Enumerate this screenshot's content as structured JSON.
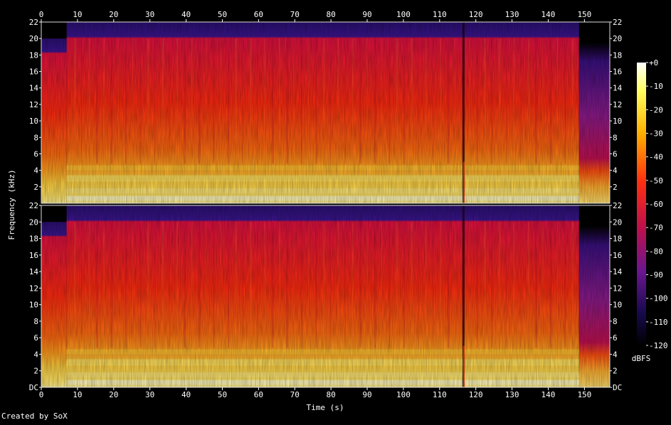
{
  "chart_data": {
    "type": "heatmap",
    "title": "",
    "xlabel": "Time (s)",
    "ylabel": "Frequency (kHz)",
    "xlim": [
      0,
      157
    ],
    "ylim": [
      0,
      22
    ],
    "x_ticks": [
      "0",
      "10",
      "20",
      "30",
      "40",
      "50",
      "60",
      "70",
      "80",
      "90",
      "100",
      "110",
      "120",
      "130",
      "140",
      "150"
    ],
    "y_ticks_top": [
      "22",
      "20",
      "18",
      "16",
      "14",
      "12",
      "10",
      "8",
      "6",
      "4",
      "2"
    ],
    "y_ticks_bottom": [
      "22",
      "20",
      "18",
      "16",
      "14",
      "12",
      "10",
      "8",
      "6",
      "4",
      "2",
      "DC"
    ],
    "channels": 2,
    "colorbar": {
      "label": "dBFS",
      "ticks": [
        "+0",
        "-10",
        "-20",
        "-30",
        "-40",
        "-50",
        "-60",
        "-70",
        "-80",
        "-90",
        "-100",
        "-110",
        "-120"
      ],
      "range": [
        -120,
        0
      ]
    },
    "features": {
      "lowpass_cutoff_khz": 20,
      "intro_end_s": 7,
      "dropout_s": 116.5,
      "fadeout_start_s": 148.5
    },
    "colors": {
      "background": "#000000",
      "low": "#000000",
      "mid_low": "#2a1a80",
      "mid": "#c00040",
      "mid_high": "#ff3a10",
      "high": "#ffb000",
      "peak": "#ffffff"
    }
  },
  "footer": "Created by SoX"
}
